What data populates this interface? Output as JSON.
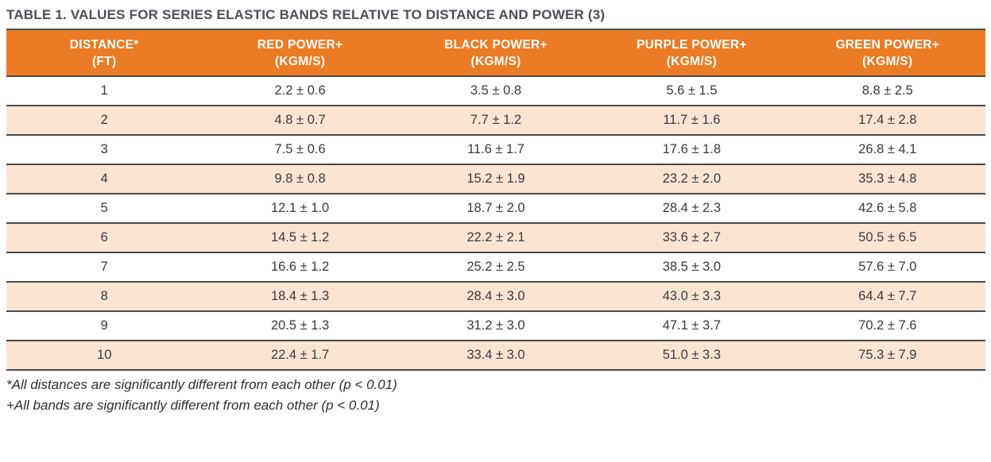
{
  "title": "TABLE 1. VALUES FOR SERIES ELASTIC BANDS RELATIVE TO DISTANCE AND POWER (3)",
  "table": {
    "columns": [
      {
        "label": "DISTANCE*",
        "unit": "(FT)"
      },
      {
        "label": "RED POWER+",
        "unit": "(KGM/S)"
      },
      {
        "label": "BLACK POWER+",
        "unit": "(KGM/S)"
      },
      {
        "label": "PURPLE POWER+",
        "unit": "(KGM/S)"
      },
      {
        "label": "GREEN POWER+",
        "unit": "(KGM/S)"
      }
    ],
    "rows": [
      [
        "1",
        "2.2 ± 0.6",
        "3.5 ± 0.8",
        "5.6 ± 1.5",
        "8.8 ± 2.5"
      ],
      [
        "2",
        "4.8 ± 0.7",
        "7.7 ± 1.2",
        "11.7 ± 1.6",
        "17.4 ± 2.8"
      ],
      [
        "3",
        "7.5 ± 0.6",
        "11.6 ± 1.7",
        "17.6 ± 1.8",
        "26.8 ± 4.1"
      ],
      [
        "4",
        "9.8 ± 0.8",
        "15.2 ± 1.9",
        "23.2 ± 2.0",
        "35.3 ± 4.8"
      ],
      [
        "5",
        "12.1 ± 1.0",
        "18.7 ± 2.0",
        "28.4 ± 2.3",
        "42.6 ± 5.8"
      ],
      [
        "6",
        "14.5 ± 1.2",
        "22.2 ± 2.1",
        "33.6 ± 2.7",
        "50.5 ± 6.5"
      ],
      [
        "7",
        "16.6 ± 1.2",
        "25.2 ± 2.5",
        "38.5 ± 3.0",
        "57.6 ± 7.0"
      ],
      [
        "8",
        "18.4 ± 1.3",
        "28.4 ± 3.0",
        "43.0 ± 3.3",
        "64.4 ± 7.7"
      ],
      [
        "9",
        "20.5 ± 1.3",
        "31.2 ± 3.0",
        "47.1 ± 3.7",
        "70.2 ± 7.6"
      ],
      [
        "10",
        "22.4 ± 1.7",
        "33.4 ± 3.0",
        "51.0 ± 3.3",
        "75.3 ± 7.9"
      ]
    ]
  },
  "footnotes": [
    "*All distances are significantly different from each other (p < 0.01)",
    "+All bands are significantly different from each other (p < 0.01)"
  ],
  "colors": {
    "header_bg": "#eb7b25",
    "header_text": "#ffffff",
    "stripe_bg": "#fce4d2",
    "border": "#4a4a4a",
    "title_text": "#4d4e56",
    "body_text": "#3a3a3e",
    "footnote_text": "#2f2f33"
  }
}
